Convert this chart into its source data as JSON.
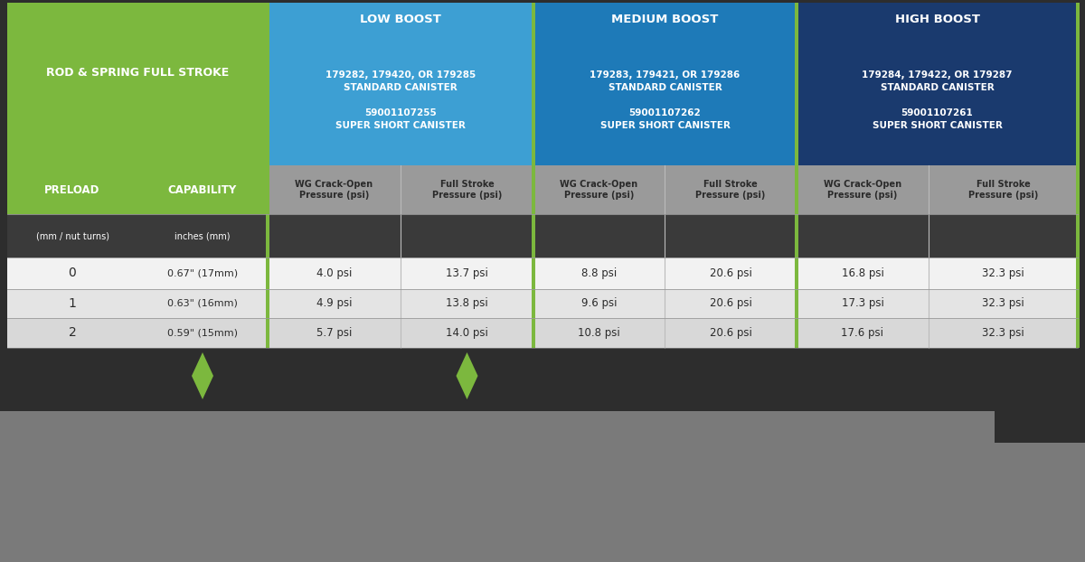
{
  "bg_color": "#2d2d2d",
  "green_header": "#7cb83e",
  "low_boost_color": "#3d9fd3",
  "medium_boost_color": "#1e7ab8",
  "high_boost_color": "#1a3a6e",
  "subheader_bg": "#888888",
  "row0_bg": "#f0f0f0",
  "row1_bg": "#e0e0e0",
  "row2_bg": "#d4d4d4",
  "diamond_color": "#7cb83e",
  "footer_color": "#7a7a7a",
  "dark_text": "#2a2a2a",
  "white": "#ffffff",
  "rows": [
    {
      "preload": "0",
      "capability": "0.67\" (17mm)",
      "lb_crack": "4.0 psi",
      "lb_full": "13.7 psi",
      "mb_crack": "8.8 psi",
      "mb_full": "20.6 psi",
      "hb_crack": "16.8 psi",
      "hb_full": "32.3 psi"
    },
    {
      "preload": "1",
      "capability": "0.63\" (16mm)",
      "lb_crack": "4.9 psi",
      "lb_full": "13.8 psi",
      "mb_crack": "9.6 psi",
      "mb_full": "20.6 psi",
      "hb_crack": "17.3 psi",
      "hb_full": "32.3 psi"
    },
    {
      "preload": "2",
      "capability": "0.59\" (15mm)",
      "lb_crack": "5.7 psi",
      "lb_full": "14.0 psi",
      "mb_crack": "10.8 psi",
      "mb_full": "20.6 psi",
      "hb_crack": "17.6 psi",
      "hb_full": "32.3 psi"
    }
  ],
  "figwidth": 12.0,
  "figheight": 6.22
}
